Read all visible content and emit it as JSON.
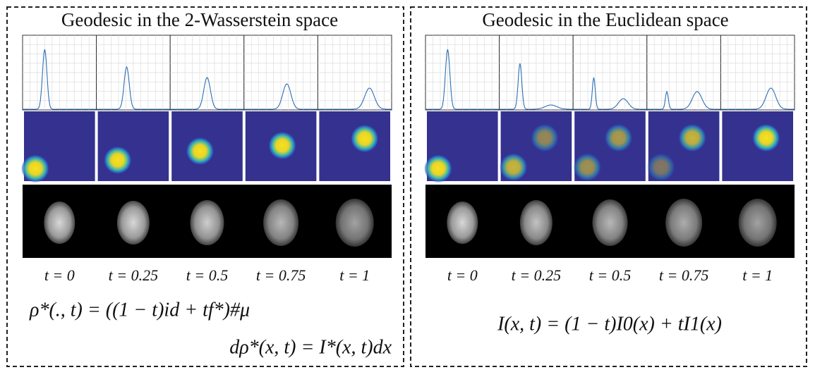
{
  "panels": [
    {
      "title": "Geodesic in the 2-Wasserstein space",
      "time_labels": [
        "t = 0",
        "t = 0.25",
        "t = 0.5",
        "t = 0.75",
        "t = 1"
      ],
      "equations": [
        "ρ*(., t) = ((1 − t)id + tf*)#μ",
        "dρ*(x, t) = I*(x, t)dx"
      ]
    },
    {
      "title": "Geodesic in the Euclidean space",
      "time_labels": [
        "t = 0",
        "t = 0.25",
        "t = 0.5",
        "t = 0.75",
        "t = 1"
      ],
      "equations": [
        "I(x, t) = (1 − t)I0(x) + tI1(x)"
      ]
    }
  ]
}
